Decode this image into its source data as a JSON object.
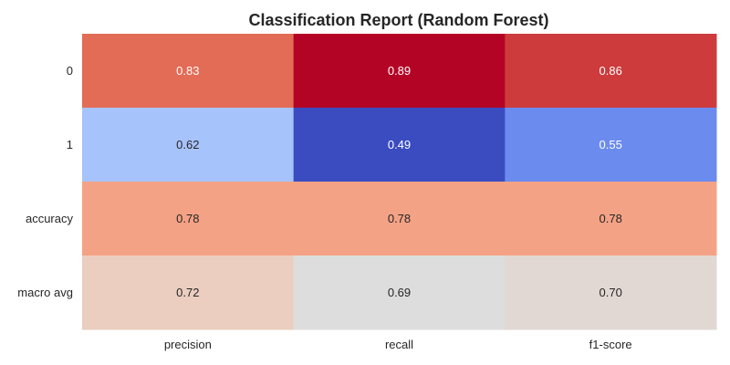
{
  "chart_data": {
    "type": "heatmap",
    "title": "Classification Report (Random Forest)",
    "xlabel": "",
    "ylabel": "",
    "columns": [
      "precision",
      "recall",
      "f1-score"
    ],
    "rows": [
      "0",
      "1",
      "accuracy",
      "macro avg"
    ],
    "values": [
      [
        0.83,
        0.89,
        0.86
      ],
      [
        0.62,
        0.49,
        0.55
      ],
      [
        0.78,
        0.78,
        0.78
      ],
      [
        0.72,
        0.69,
        0.7
      ]
    ],
    "colormap": "coolwarm",
    "vmin": 0.49,
    "vmax": 0.89,
    "annotation_format": "0.00",
    "colorbar": false,
    "grid": false
  }
}
